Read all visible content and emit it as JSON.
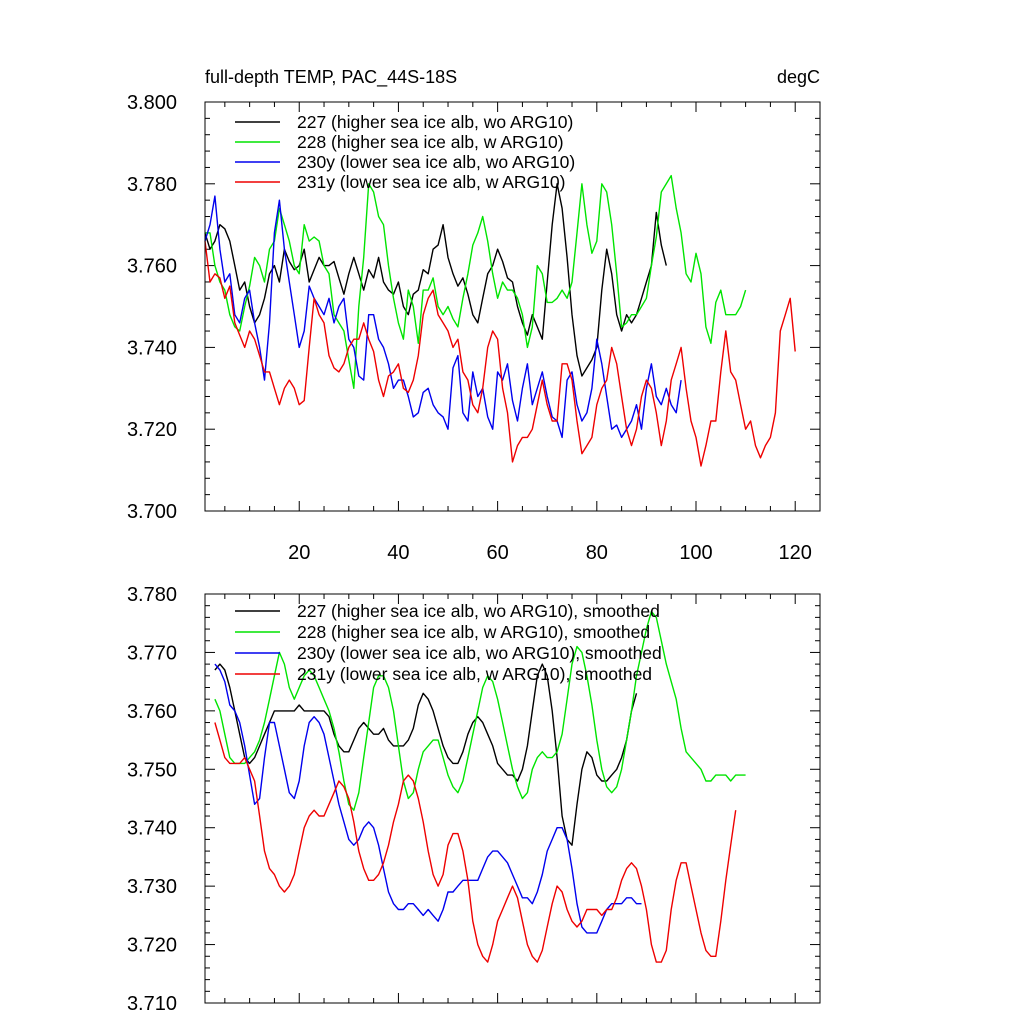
{
  "chart_data": [
    {
      "type": "line",
      "title": "full-depth TEMP, PAC_44S-18S",
      "units": "degC",
      "xlim": [
        1,
        125
      ],
      "ylim": [
        3.7,
        3.8
      ],
      "xticks": [
        20,
        40,
        60,
        80,
        100,
        120
      ],
      "xtick_labels": [
        "20",
        "40",
        "60",
        "80",
        "100",
        "120"
      ],
      "yticks": [
        3.7,
        3.72,
        3.74,
        3.76,
        3.78,
        3.8
      ],
      "ytick_labels": [
        "3.700",
        "3.720",
        "3.740",
        "3.760",
        "3.780",
        "3.800"
      ],
      "series": [
        {
          "name": "227 (higher sea ice alb, wo ARG10)",
          "color": "#000000",
          "x_start": 1,
          "values": [
            3.768,
            3.764,
            3.766,
            3.77,
            3.769,
            3.766,
            3.76,
            3.754,
            3.756,
            3.75,
            3.746,
            3.748,
            3.752,
            3.758,
            3.76,
            3.756,
            3.764,
            3.761,
            3.759,
            3.76,
            3.764,
            3.756,
            3.759,
            3.762,
            3.76,
            3.76,
            3.761,
            3.757,
            3.753,
            3.758,
            3.762,
            3.758,
            3.754,
            3.759,
            3.757,
            3.762,
            3.756,
            3.754,
            3.753,
            3.756,
            3.75,
            3.748,
            3.753,
            3.754,
            3.759,
            3.758,
            3.764,
            3.765,
            3.77,
            3.762,
            3.758,
            3.755,
            3.757,
            3.753,
            3.748,
            3.746,
            3.752,
            3.758,
            3.76,
            3.764,
            3.761,
            3.757,
            3.756,
            3.75,
            3.746,
            3.743,
            3.748,
            3.745,
            3.742,
            3.756,
            3.77,
            3.78,
            3.774,
            3.762,
            3.748,
            3.738,
            3.733,
            3.735,
            3.737,
            3.74,
            3.754,
            3.764,
            3.758,
            3.748,
            3.744,
            3.748,
            3.746,
            3.748,
            3.752,
            3.756,
            3.76,
            3.773,
            3.765,
            3.76
          ]
        },
        {
          "name": "228 (higher sea ice alb, w ARG10)",
          "color": "#00e400",
          "x_start": 1,
          "values": [
            3.768,
            3.768,
            3.76,
            3.756,
            3.754,
            3.748,
            3.745,
            3.744,
            3.75,
            3.755,
            3.762,
            3.76,
            3.756,
            3.764,
            3.766,
            3.774,
            3.77,
            3.766,
            3.76,
            3.758,
            3.77,
            3.766,
            3.767,
            3.766,
            3.76,
            3.758,
            3.748,
            3.746,
            3.744,
            3.737,
            3.73,
            3.75,
            3.762,
            3.78,
            3.778,
            3.772,
            3.77,
            3.76,
            3.752,
            3.746,
            3.742,
            3.754,
            3.75,
            3.741,
            3.754,
            3.754,
            3.757,
            3.75,
            3.748,
            3.75,
            3.747,
            3.745,
            3.752,
            3.758,
            3.765,
            3.768,
            3.772,
            3.766,
            3.758,
            3.752,
            3.756,
            3.754,
            3.754,
            3.752,
            3.748,
            3.74,
            3.745,
            3.76,
            3.758,
            3.751,
            3.751,
            3.752,
            3.754,
            3.752,
            3.756,
            3.768,
            3.78,
            3.77,
            3.763,
            3.766,
            3.78,
            3.778,
            3.77,
            3.758,
            3.745,
            3.746,
            3.748,
            3.748,
            3.75,
            3.752,
            3.76,
            3.767,
            3.778,
            3.78,
            3.782,
            3.774,
            3.768,
            3.758,
            3.756,
            3.763,
            3.758,
            3.745,
            3.741,
            3.751,
            3.754,
            3.748,
            3.748,
            3.748,
            3.75,
            3.754
          ]
        },
        {
          "name": "230y (lower sea ice alb, wo ARG10)",
          "color": "#0000ee",
          "x_start": 1,
          "values": [
            3.766,
            3.77,
            3.777,
            3.764,
            3.756,
            3.758,
            3.748,
            3.746,
            3.752,
            3.754,
            3.746,
            3.74,
            3.732,
            3.746,
            3.768,
            3.776,
            3.764,
            3.756,
            3.748,
            3.74,
            3.744,
            3.755,
            3.752,
            3.75,
            3.748,
            3.752,
            3.746,
            3.75,
            3.752,
            3.742,
            3.74,
            3.733,
            3.732,
            3.748,
            3.748,
            3.742,
            3.74,
            3.736,
            3.73,
            3.732,
            3.732,
            3.728,
            3.723,
            3.724,
            3.729,
            3.73,
            3.726,
            3.724,
            3.723,
            3.72,
            3.735,
            3.738,
            3.724,
            3.722,
            3.734,
            3.728,
            3.73,
            3.723,
            3.72,
            3.734,
            3.732,
            3.736,
            3.727,
            3.722,
            3.73,
            3.736,
            3.726,
            3.73,
            3.734,
            3.728,
            3.723,
            3.722,
            3.718,
            3.732,
            3.734,
            3.726,
            3.722,
            3.724,
            3.73,
            3.742,
            3.736,
            3.728,
            3.72,
            3.721,
            3.718,
            3.72,
            3.722,
            3.726,
            3.72,
            3.73,
            3.736,
            3.728,
            3.726,
            3.73,
            3.726,
            3.724,
            3.732
          ]
        },
        {
          "name": "231y (lower sea ice alb, w ARG10)",
          "color": "#ee0000",
          "x_start": 1,
          "values": [
            3.766,
            3.756,
            3.758,
            3.757,
            3.752,
            3.755,
            3.746,
            3.743,
            3.74,
            3.744,
            3.742,
            3.738,
            3.734,
            3.734,
            3.73,
            3.726,
            3.73,
            3.732,
            3.73,
            3.726,
            3.727,
            3.74,
            3.752,
            3.748,
            3.746,
            3.738,
            3.735,
            3.734,
            3.736,
            3.74,
            3.742,
            3.742,
            3.746,
            3.742,
            3.739,
            3.732,
            3.728,
            3.733,
            3.734,
            3.736,
            3.73,
            3.729,
            3.732,
            3.738,
            3.748,
            3.752,
            3.754,
            3.748,
            3.746,
            3.744,
            3.74,
            3.742,
            3.734,
            3.732,
            3.726,
            3.724,
            3.73,
            3.74,
            3.744,
            3.742,
            3.73,
            3.724,
            3.712,
            3.716,
            3.718,
            3.718,
            3.72,
            3.726,
            3.732,
            3.726,
            3.722,
            3.722,
            3.736,
            3.736,
            3.732,
            3.722,
            3.714,
            3.716,
            3.718,
            3.726,
            3.73,
            3.732,
            3.74,
            3.736,
            3.728,
            3.72,
            3.716,
            3.72,
            3.728,
            3.732,
            3.73,
            3.724,
            3.716,
            3.722,
            3.732,
            3.736,
            3.74,
            3.73,
            3.722,
            3.718,
            3.711,
            3.716,
            3.722,
            3.722,
            3.734,
            3.744,
            3.734,
            3.732,
            3.726,
            3.72,
            3.722,
            3.716,
            3.713,
            3.716,
            3.718,
            3.724,
            3.744,
            3.748,
            3.752,
            3.739
          ]
        }
      ]
    },
    {
      "type": "line",
      "title": "",
      "xlim": [
        1,
        125
      ],
      "ylim": [
        3.71,
        3.78
      ],
      "xticks": [
        20,
        40,
        60,
        80,
        100,
        120
      ],
      "xtick_labels": [],
      "yticks": [
        3.71,
        3.72,
        3.73,
        3.74,
        3.75,
        3.76,
        3.77,
        3.78
      ],
      "ytick_labels": [
        "3.710",
        "3.720",
        "3.730",
        "3.740",
        "3.750",
        "3.760",
        "3.770",
        "3.780"
      ],
      "series": [
        {
          "name": "227 (higher sea ice alb, wo ARG10), smoothed",
          "color": "#000000",
          "x_start": 3,
          "values": [
            3.767,
            3.768,
            3.767,
            3.764,
            3.76,
            3.756,
            3.752,
            3.751,
            3.752,
            3.754,
            3.756,
            3.758,
            3.76,
            3.76,
            3.76,
            3.76,
            3.76,
            3.761,
            3.76,
            3.76,
            3.76,
            3.76,
            3.76,
            3.759,
            3.756,
            3.754,
            3.753,
            3.753,
            3.755,
            3.757,
            3.758,
            3.757,
            3.756,
            3.756,
            3.757,
            3.755,
            3.754,
            3.754,
            3.754,
            3.755,
            3.757,
            3.761,
            3.763,
            3.762,
            3.76,
            3.757,
            3.754,
            3.752,
            3.751,
            3.751,
            3.753,
            3.756,
            3.758,
            3.759,
            3.758,
            3.756,
            3.754,
            3.751,
            3.75,
            3.749,
            3.749,
            3.748,
            3.75,
            3.754,
            3.76,
            3.766,
            3.768,
            3.766,
            3.76,
            3.752,
            3.742,
            3.738,
            3.737,
            3.744,
            3.75,
            3.753,
            3.752,
            3.749,
            3.748,
            3.748,
            3.749,
            3.75,
            3.752,
            3.755,
            3.76,
            3.763
          ]
        },
        {
          "name": "228 (higher sea ice alb, w ARG10), smoothed",
          "color": "#00e400",
          "x_start": 3,
          "values": [
            3.762,
            3.76,
            3.756,
            3.752,
            3.751,
            3.751,
            3.751,
            3.752,
            3.753,
            3.755,
            3.758,
            3.762,
            3.766,
            3.77,
            3.768,
            3.764,
            3.762,
            3.764,
            3.766,
            3.767,
            3.766,
            3.764,
            3.762,
            3.76,
            3.757,
            3.753,
            3.748,
            3.744,
            3.743,
            3.746,
            3.752,
            3.758,
            3.764,
            3.766,
            3.766,
            3.764,
            3.76,
            3.754,
            3.748,
            3.745,
            3.746,
            3.75,
            3.753,
            3.754,
            3.755,
            3.755,
            3.752,
            3.749,
            3.747,
            3.746,
            3.748,
            3.752,
            3.756,
            3.76,
            3.764,
            3.766,
            3.765,
            3.762,
            3.758,
            3.754,
            3.75,
            3.747,
            3.745,
            3.746,
            3.75,
            3.752,
            3.753,
            3.752,
            3.752,
            3.753,
            3.756,
            3.762,
            3.768,
            3.771,
            3.77,
            3.766,
            3.761,
            3.755,
            3.75,
            3.747,
            3.746,
            3.747,
            3.75,
            3.755,
            3.76,
            3.766,
            3.77,
            3.774,
            3.777,
            3.776,
            3.772,
            3.768,
            3.765,
            3.762,
            3.757,
            3.753,
            3.752,
            3.751,
            3.75,
            3.748,
            3.748,
            3.749,
            3.749,
            3.749,
            3.748,
            3.749,
            3.749,
            3.749
          ]
        },
        {
          "name": "230y (lower sea ice alb, wo ARG10), smoothed",
          "color": "#0000ee",
          "x_start": 3,
          "values": [
            3.768,
            3.767,
            3.765,
            3.761,
            3.76,
            3.758,
            3.754,
            3.749,
            3.744,
            3.745,
            3.752,
            3.758,
            3.758,
            3.754,
            3.75,
            3.746,
            3.745,
            3.748,
            3.754,
            3.758,
            3.759,
            3.758,
            3.756,
            3.752,
            3.748,
            3.744,
            3.741,
            3.738,
            3.737,
            3.738,
            3.74,
            3.741,
            3.74,
            3.737,
            3.733,
            3.729,
            3.727,
            3.726,
            3.726,
            3.727,
            3.727,
            3.726,
            3.725,
            3.726,
            3.725,
            3.724,
            3.726,
            3.729,
            3.729,
            3.73,
            3.731,
            3.731,
            3.731,
            3.731,
            3.733,
            3.735,
            3.736,
            3.736,
            3.735,
            3.734,
            3.732,
            3.73,
            3.728,
            3.728,
            3.727,
            3.729,
            3.732,
            3.736,
            3.738,
            3.74,
            3.74,
            3.738,
            3.733,
            3.727,
            3.723,
            3.722,
            3.722,
            3.722,
            3.724,
            3.726,
            3.727,
            3.727,
            3.727,
            3.728,
            3.728,
            3.727,
            3.727
          ]
        },
        {
          "name": "231y (lower sea ice alb, w ARG10), smoothed",
          "color": "#ee0000",
          "x_start": 3,
          "values": [
            3.758,
            3.755,
            3.752,
            3.751,
            3.751,
            3.751,
            3.752,
            3.75,
            3.748,
            3.742,
            3.736,
            3.733,
            3.732,
            3.73,
            3.729,
            3.73,
            3.732,
            3.736,
            3.74,
            3.742,
            3.743,
            3.742,
            3.742,
            3.744,
            3.746,
            3.748,
            3.747,
            3.745,
            3.741,
            3.736,
            3.733,
            3.731,
            3.731,
            3.732,
            3.734,
            3.737,
            3.741,
            3.744,
            3.748,
            3.749,
            3.748,
            3.745,
            3.741,
            3.736,
            3.732,
            3.73,
            3.732,
            3.737,
            3.739,
            3.739,
            3.736,
            3.731,
            3.724,
            3.72,
            3.718,
            3.717,
            3.72,
            3.724,
            3.726,
            3.728,
            3.73,
            3.728,
            3.724,
            3.72,
            3.718,
            3.717,
            3.719,
            3.723,
            3.727,
            3.73,
            3.729,
            3.726,
            3.724,
            3.723,
            3.724,
            3.726,
            3.726,
            3.726,
            3.725,
            3.726,
            3.726,
            3.728,
            3.731,
            3.733,
            3.734,
            3.733,
            3.73,
            3.726,
            3.72,
            3.717,
            3.717,
            3.719,
            3.726,
            3.731,
            3.734,
            3.734,
            3.73,
            3.726,
            3.722,
            3.719,
            3.718,
            3.718,
            3.724,
            3.731,
            3.737,
            3.743
          ]
        }
      ]
    }
  ]
}
